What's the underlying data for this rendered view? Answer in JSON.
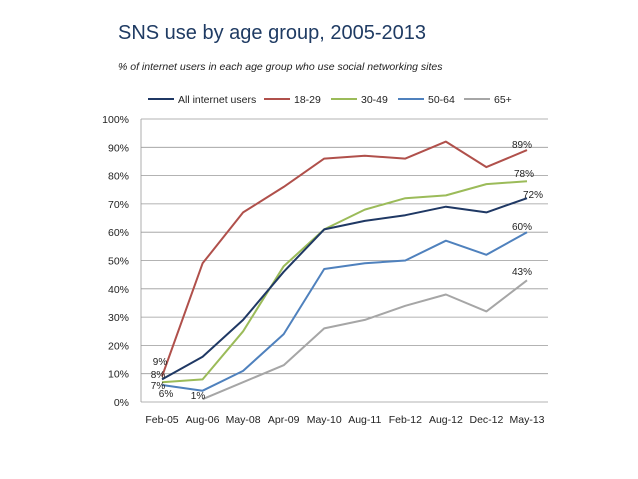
{
  "chart_data": {
    "type": "line",
    "title": "SNS use by age group, 2005-2013",
    "subtitle": "% of internet users in each age group who use social networking sites",
    "categories": [
      "Feb-05",
      "Aug-06",
      "May-08",
      "Apr-09",
      "May-10",
      "Aug-11",
      "Feb-12",
      "Aug-12",
      "Dec-12",
      "May-13"
    ],
    "ylim": [
      0,
      100
    ],
    "yticks": [
      "0%",
      "10%",
      "20%",
      "30%",
      "40%",
      "50%",
      "60%",
      "70%",
      "80%",
      "90%",
      "100%"
    ],
    "grid": true,
    "legend_position": "top",
    "series": [
      {
        "name": "All internet users",
        "color": "#1f3864",
        "values": [
          8,
          16,
          29,
          46,
          61,
          64,
          66,
          69,
          67,
          72
        ],
        "start_label": "8%",
        "end_label": "72%"
      },
      {
        "name": "18-29",
        "color": "#b0504b",
        "values": [
          9,
          49,
          67,
          76,
          86,
          87,
          86,
          92,
          83,
          89
        ],
        "start_label": "9%",
        "end_label": "89%"
      },
      {
        "name": "30-49",
        "color": "#9bbb59",
        "values": [
          7,
          8,
          25,
          48,
          61,
          68,
          72,
          73,
          77,
          78
        ],
        "start_label": "7%",
        "end_label": "78%"
      },
      {
        "name": "50-64",
        "color": "#4f81bd",
        "values": [
          6,
          4,
          11,
          24,
          47,
          49,
          50,
          57,
          52,
          60
        ],
        "start_label": "6%",
        "end_label": "60%"
      },
      {
        "name": "65+",
        "color": "#a6a6a6",
        "values": [
          null,
          1,
          7,
          13,
          26,
          29,
          34,
          38,
          32,
          43
        ],
        "start_label": "1%",
        "end_label": "43%"
      }
    ]
  }
}
